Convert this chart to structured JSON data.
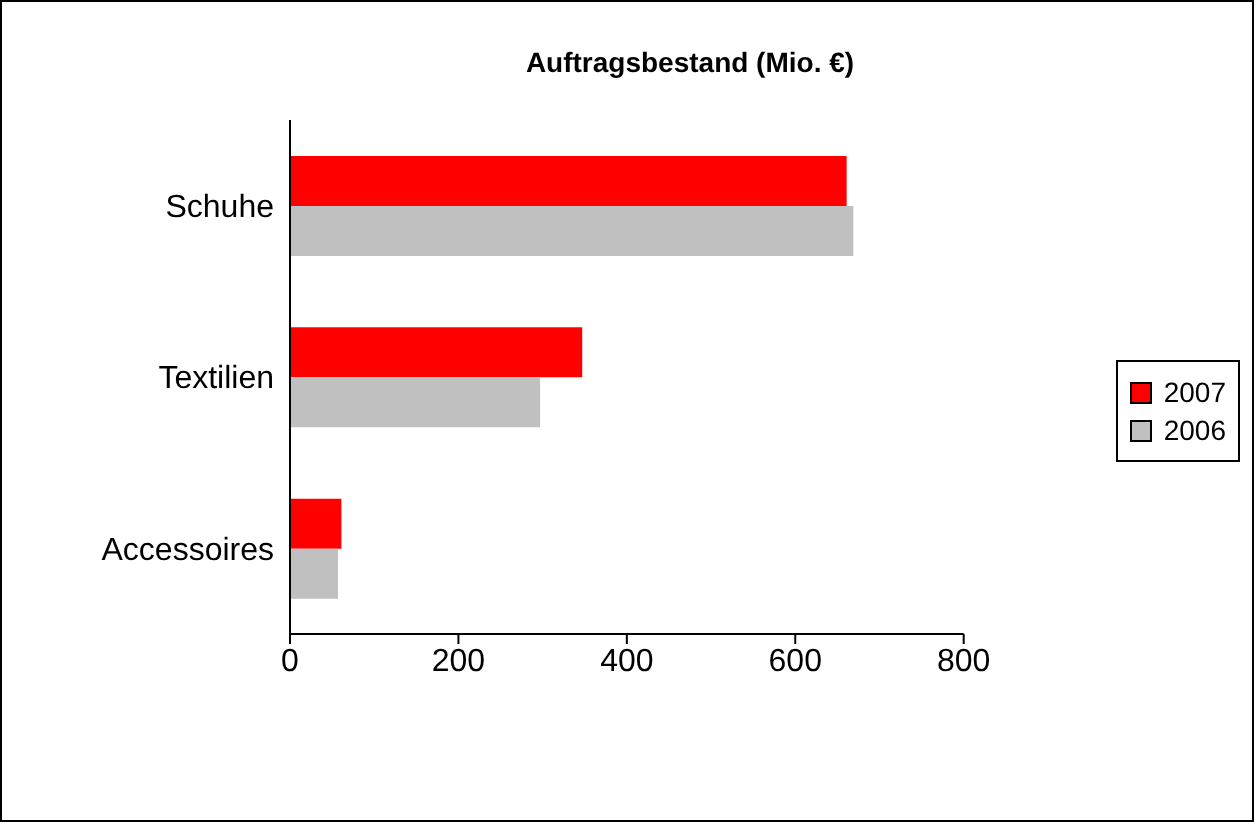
{
  "chart_data": {
    "type": "bar",
    "orientation": "horizontal",
    "title": "Auftragsbestand  (Mio. €)",
    "categories": [
      "Schuhe",
      "Textilien",
      "Accessoires"
    ],
    "series": [
      {
        "name": "2007",
        "color": "#ff0000",
        "values": [
          661,
          347,
          61
        ]
      },
      {
        "name": "2006",
        "color": "#c0c0c0",
        "values": [
          669,
          297,
          57
        ]
      }
    ],
    "xlim": [
      0,
      800
    ],
    "xticks": [
      0,
      200,
      400,
      600,
      800
    ],
    "grid": false,
    "legend": "right"
  }
}
